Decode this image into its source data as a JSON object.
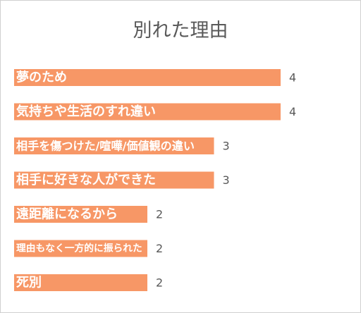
{
  "chart_data": {
    "type": "bar",
    "orientation": "horizontal",
    "title": "別れた理由",
    "categories": [
      "夢のため",
      "気持ちや生活のすれ違い",
      "相手を傷つけた/喧嘩/価値観の違い",
      "相手に好きな人ができた",
      "遠距離になるから",
      "理由もなく一方的に振られた",
      "死別"
    ],
    "values": [
      4,
      4,
      3,
      3,
      2,
      2,
      2
    ],
    "xlim": [
      0,
      4
    ],
    "grid": false,
    "legend": "none",
    "bar_color": "#f79766",
    "label_color": "#ffffff",
    "value_color": "#595959"
  }
}
